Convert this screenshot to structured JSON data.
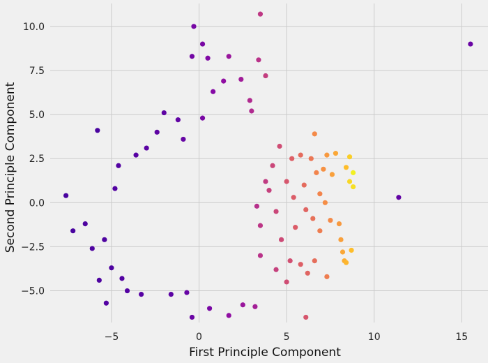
{
  "chart_data": {
    "type": "scatter",
    "title": "",
    "xlabel": "First Principle Component",
    "ylabel": "Second Principle Component",
    "xlim": [
      -8.5,
      16.5
    ],
    "ylim": [
      -6.8,
      11.3
    ],
    "xticks": [
      -5,
      0,
      5,
      10,
      15
    ],
    "yticks": [
      -5.0,
      -2.5,
      0.0,
      2.5,
      5.0,
      7.5,
      10.0
    ],
    "xtick_labels": [
      "−5",
      "0",
      "5",
      "10",
      "15"
    ],
    "ytick_labels": [
      "−5.0",
      "−2.5",
      "0.0",
      "2.5",
      "5.0",
      "7.5",
      "10.0"
    ],
    "grid": true,
    "colormap": "plasma",
    "colormap_stops": [
      "#0d0887",
      "#5402a3",
      "#8b0aa5",
      "#b93289",
      "#db5c68",
      "#f48849",
      "#febc2a",
      "#f0f921"
    ],
    "points": [
      [
        -7.6,
        0.4,
        0.12
      ],
      [
        -7.2,
        -1.6,
        0.12
      ],
      [
        -6.5,
        -1.2,
        0.13
      ],
      [
        -6.1,
        -2.6,
        0.13
      ],
      [
        -5.8,
        4.1,
        0.12
      ],
      [
        -5.7,
        -4.4,
        0.13
      ],
      [
        -5.4,
        -2.1,
        0.13
      ],
      [
        -5.3,
        -5.7,
        0.14
      ],
      [
        -5.0,
        -3.7,
        0.13
      ],
      [
        -4.8,
        0.8,
        0.14
      ],
      [
        -4.6,
        2.1,
        0.14
      ],
      [
        -4.4,
        -4.3,
        0.14
      ],
      [
        -4.1,
        -5.0,
        0.14
      ],
      [
        -3.6,
        2.7,
        0.15
      ],
      [
        -3.3,
        -5.2,
        0.15
      ],
      [
        -3.0,
        3.1,
        0.16
      ],
      [
        -2.4,
        4.0,
        0.17
      ],
      [
        -2.0,
        5.1,
        0.17
      ],
      [
        -1.6,
        -5.2,
        0.16
      ],
      [
        -1.2,
        4.7,
        0.18
      ],
      [
        -0.9,
        3.6,
        0.19
      ],
      [
        -0.7,
        -5.1,
        0.19
      ],
      [
        -0.4,
        -6.5,
        0.2
      ],
      [
        -0.4,
        8.3,
        0.22
      ],
      [
        -0.3,
        10.0,
        0.23
      ],
      [
        0.2,
        9.0,
        0.24
      ],
      [
        0.2,
        4.8,
        0.24
      ],
      [
        0.5,
        8.2,
        0.26
      ],
      [
        0.8,
        6.3,
        0.27
      ],
      [
        0.6,
        -6.0,
        0.24
      ],
      [
        1.4,
        6.9,
        0.3
      ],
      [
        1.7,
        8.3,
        0.33
      ],
      [
        1.7,
        -6.4,
        0.3
      ],
      [
        2.4,
        7.0,
        0.35
      ],
      [
        2.5,
        -5.8,
        0.33
      ],
      [
        2.9,
        5.8,
        0.4
      ],
      [
        3.0,
        5.2,
        0.4
      ],
      [
        3.2,
        -5.9,
        0.36
      ],
      [
        3.4,
        8.1,
        0.43
      ],
      [
        3.5,
        10.7,
        0.45
      ],
      [
        3.8,
        7.2,
        0.47
      ],
      [
        3.3,
        -0.2,
        0.42
      ],
      [
        3.5,
        -1.3,
        0.44
      ],
      [
        3.8,
        1.2,
        0.46
      ],
      [
        3.5,
        -3.0,
        0.43
      ],
      [
        4.0,
        0.7,
        0.48
      ],
      [
        4.2,
        2.1,
        0.5
      ],
      [
        4.4,
        -0.5,
        0.5
      ],
      [
        4.4,
        -3.8,
        0.48
      ],
      [
        4.6,
        3.2,
        0.52
      ],
      [
        4.7,
        -2.1,
        0.51
      ],
      [
        5.0,
        1.2,
        0.55
      ],
      [
        5.0,
        -4.5,
        0.52
      ],
      [
        5.2,
        -3.3,
        0.53
      ],
      [
        5.3,
        2.5,
        0.58
      ],
      [
        5.4,
        0.3,
        0.57
      ],
      [
        5.5,
        -1.4,
        0.57
      ],
      [
        5.8,
        2.7,
        0.62
      ],
      [
        5.8,
        -3.5,
        0.58
      ],
      [
        6.0,
        1.0,
        0.62
      ],
      [
        6.1,
        -0.4,
        0.6
      ],
      [
        6.1,
        -6.5,
        0.55
      ],
      [
        6.2,
        -4.0,
        0.6
      ],
      [
        6.4,
        2.5,
        0.66
      ],
      [
        6.5,
        -0.9,
        0.64
      ],
      [
        6.6,
        -3.3,
        0.63
      ],
      [
        6.6,
        3.9,
        0.72
      ],
      [
        6.7,
        1.7,
        0.7
      ],
      [
        6.9,
        0.5,
        0.7
      ],
      [
        6.9,
        -1.6,
        0.68
      ],
      [
        7.1,
        1.9,
        0.74
      ],
      [
        7.2,
        0.0,
        0.73
      ],
      [
        7.3,
        -4.2,
        0.68
      ],
      [
        7.3,
        2.7,
        0.76
      ],
      [
        7.5,
        -1.0,
        0.72
      ],
      [
        7.6,
        1.6,
        0.78
      ],
      [
        7.8,
        2.8,
        0.8
      ],
      [
        8.0,
        -1.2,
        0.76
      ],
      [
        8.1,
        -2.1,
        0.78
      ],
      [
        8.2,
        -2.8,
        0.8
      ],
      [
        8.3,
        -3.3,
        0.82
      ],
      [
        8.4,
        2.0,
        0.86
      ],
      [
        8.4,
        -3.4,
        0.84
      ],
      [
        8.6,
        2.6,
        0.9
      ],
      [
        8.6,
        1.2,
        0.92
      ],
      [
        8.7,
        -2.7,
        0.86
      ],
      [
        8.8,
        0.9,
        0.94
      ],
      [
        8.8,
        1.7,
        0.98
      ],
      [
        11.4,
        0.3,
        0.18
      ],
      [
        15.5,
        9.0,
        0.2
      ]
    ]
  }
}
